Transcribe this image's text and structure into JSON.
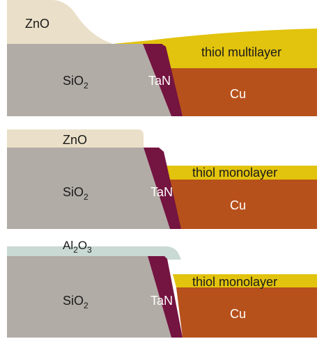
{
  "colors": {
    "background": "#ffffff",
    "sio2": "#b2aca6",
    "tan": "#741440",
    "cu": "#b7511c",
    "thiol": "#e2c30d",
    "zno": "#eadfc8",
    "al2o3": "#c9d9d4"
  },
  "panels": [
    {
      "top_film": {
        "base": "ZnO",
        "subscript": ""
      },
      "sio2": {
        "base": "SiO",
        "subscript": "2"
      },
      "tan": "TaN",
      "thiol": "thiol multilayer",
      "cu": "Cu"
    },
    {
      "top_film": {
        "base": "ZnO",
        "subscript": ""
      },
      "sio2": {
        "base": "SiO",
        "subscript": "2"
      },
      "tan": "TaN",
      "thiol": "thiol monolayer",
      "cu": "Cu"
    },
    {
      "top_film": {
        "base": "Al",
        "sub1": "2",
        "mid": "O",
        "sub2": "3"
      },
      "sio2": {
        "base": "SiO",
        "subscript": "2"
      },
      "tan": "TaN",
      "thiol": "thiol monolayer",
      "cu": "Cu"
    }
  ]
}
